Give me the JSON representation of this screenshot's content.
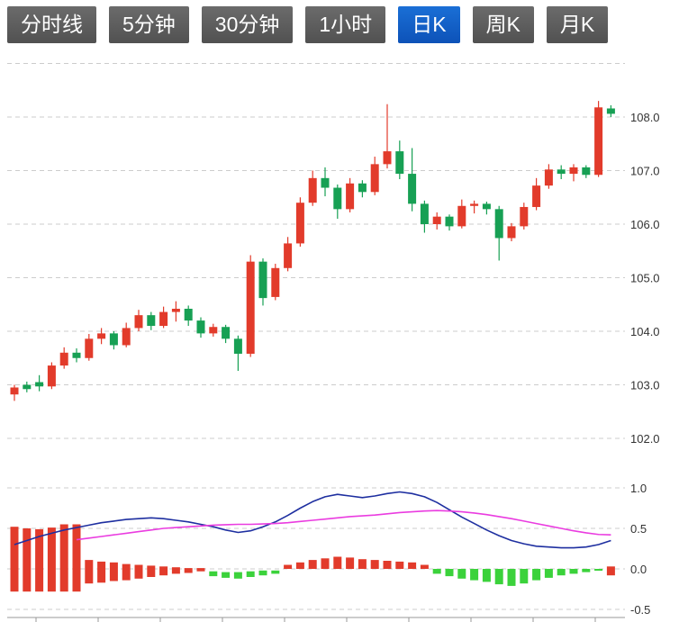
{
  "tabs": [
    {
      "id": "time-line",
      "label": "分时线",
      "active": false
    },
    {
      "id": "5min",
      "label": "5分钟",
      "active": false
    },
    {
      "id": "30min",
      "label": "30分钟",
      "active": false
    },
    {
      "id": "1hour",
      "label": "1小时",
      "active": false
    },
    {
      "id": "daily-k",
      "label": "日K",
      "active": true
    },
    {
      "id": "weekly-k",
      "label": "周K",
      "active": false
    },
    {
      "id": "monthly-k",
      "label": "月K",
      "active": false
    }
  ],
  "colors": {
    "up": "#e23b2b",
    "down": "#17a054",
    "macd_up": "#e23b2b",
    "macd_down": "#3bd23b",
    "dif": "#1e2fa0",
    "dea": "#ea3ce0",
    "grid": "#cccccc",
    "axis": "#999999",
    "label": "#333333",
    "tab_bg": "#515151",
    "tab_active": "#0d52b8"
  },
  "chart_data": {
    "type": "candlestick",
    "title": "",
    "legend_position": "none",
    "grid": "dashed-horizontal",
    "price_axis": {
      "side": "right",
      "ticks": [
        {
          "value": 109.0,
          "label": ""
        },
        {
          "value": 108.0,
          "label": "108.0"
        },
        {
          "value": 107.0,
          "label": "107.0"
        },
        {
          "value": 106.0,
          "label": "106.0"
        },
        {
          "value": 105.0,
          "label": "105.0"
        },
        {
          "value": 104.0,
          "label": "104.0"
        },
        {
          "value": 103.0,
          "label": "103.0"
        },
        {
          "value": 102.0,
          "label": "102.0"
        }
      ]
    },
    "candles": [
      [
        102.82,
        103.0,
        102.7,
        102.95
      ],
      [
        103.0,
        103.06,
        102.86,
        102.92
      ],
      [
        103.05,
        103.18,
        102.88,
        102.97
      ],
      [
        102.97,
        103.42,
        102.92,
        103.36
      ],
      [
        103.36,
        103.7,
        103.3,
        103.6
      ],
      [
        103.6,
        103.68,
        103.42,
        103.5
      ],
      [
        103.5,
        103.95,
        103.45,
        103.86
      ],
      [
        103.86,
        104.06,
        103.76,
        103.96
      ],
      [
        103.96,
        104.0,
        103.66,
        103.74
      ],
      [
        103.74,
        104.16,
        103.7,
        104.06
      ],
      [
        104.06,
        104.4,
        104.0,
        104.3
      ],
      [
        104.3,
        104.36,
        104.02,
        104.1
      ],
      [
        104.1,
        104.46,
        104.06,
        104.36
      ],
      [
        104.36,
        104.56,
        104.18,
        104.42
      ],
      [
        104.42,
        104.48,
        104.1,
        104.2
      ],
      [
        104.2,
        104.26,
        103.88,
        103.96
      ],
      [
        103.96,
        104.14,
        103.9,
        104.08
      ],
      [
        104.08,
        104.12,
        103.78,
        103.86
      ],
      [
        103.86,
        103.92,
        103.26,
        103.58
      ],
      [
        103.58,
        105.42,
        103.52,
        105.3
      ],
      [
        105.3,
        105.36,
        104.48,
        104.62
      ],
      [
        104.64,
        105.26,
        104.58,
        105.18
      ],
      [
        105.18,
        105.76,
        105.12,
        105.64
      ],
      [
        105.64,
        106.5,
        105.58,
        106.4
      ],
      [
        106.4,
        107.0,
        106.34,
        106.86
      ],
      [
        106.86,
        107.06,
        106.52,
        106.68
      ],
      [
        106.68,
        106.74,
        106.1,
        106.28
      ],
      [
        106.28,
        106.86,
        106.22,
        106.76
      ],
      [
        106.76,
        106.82,
        106.5,
        106.6
      ],
      [
        106.6,
        107.26,
        106.54,
        107.12
      ],
      [
        107.12,
        108.24,
        107.04,
        107.36
      ],
      [
        107.36,
        107.56,
        106.84,
        106.94
      ],
      [
        106.94,
        107.42,
        106.24,
        106.38
      ],
      [
        106.38,
        106.44,
        105.84,
        106.0
      ],
      [
        106.0,
        106.22,
        105.9,
        106.14
      ],
      [
        106.14,
        106.18,
        105.88,
        105.96
      ],
      [
        105.96,
        106.46,
        105.92,
        106.34
      ],
      [
        106.34,
        106.44,
        106.2,
        106.38
      ],
      [
        106.38,
        106.42,
        106.18,
        106.28
      ],
      [
        106.28,
        106.34,
        105.32,
        105.74
      ],
      [
        105.74,
        106.02,
        105.68,
        105.96
      ],
      [
        105.96,
        106.4,
        105.9,
        106.32
      ],
      [
        106.32,
        106.86,
        106.26,
        106.72
      ],
      [
        106.72,
        107.12,
        106.66,
        107.02
      ],
      [
        107.02,
        107.1,
        106.84,
        106.94
      ],
      [
        106.94,
        107.12,
        106.8,
        107.06
      ],
      [
        107.06,
        107.1,
        106.86,
        106.92
      ],
      [
        106.92,
        108.3,
        106.88,
        108.18
      ],
      [
        108.16,
        108.22,
        108.0,
        108.06
      ]
    ],
    "indicator": {
      "name": "MACD",
      "ticks": [
        {
          "value": 1.0,
          "label": "1.0"
        },
        {
          "value": 0.5,
          "label": "0.5"
        },
        {
          "value": 0.0,
          "label": "0.0"
        },
        {
          "value": -0.5,
          "label": "-0.5"
        }
      ],
      "bars": [
        [
          0.52,
          -0.28,
          "up"
        ],
        [
          0.5,
          -0.28,
          "up"
        ],
        [
          0.49,
          -0.28,
          "up"
        ],
        [
          0.51,
          -0.28,
          "up"
        ],
        [
          0.55,
          -0.28,
          "up"
        ],
        [
          0.55,
          -0.28,
          "up"
        ],
        [
          0.11,
          -0.18,
          "up"
        ],
        [
          0.09,
          -0.17,
          "up"
        ],
        [
          0.08,
          -0.15,
          "up"
        ],
        [
          0.06,
          -0.14,
          "up"
        ],
        [
          0.05,
          -0.12,
          "up"
        ],
        [
          0.04,
          -0.1,
          "up"
        ],
        [
          0.03,
          -0.08,
          "up"
        ],
        [
          0.02,
          -0.06,
          "up"
        ],
        [
          0.01,
          -0.05,
          "up"
        ],
        [
          0.01,
          -0.03,
          "up"
        ],
        [
          -0.03,
          -0.09,
          "down"
        ],
        [
          -0.04,
          -0.11,
          "down"
        ],
        [
          -0.04,
          -0.12,
          "down"
        ],
        [
          -0.03,
          -0.1,
          "down"
        ],
        [
          -0.02,
          -0.08,
          "down"
        ],
        [
          -0.02,
          -0.06,
          "down"
        ],
        [
          0.05,
          0,
          "up"
        ],
        [
          0.08,
          0,
          "up"
        ],
        [
          0.11,
          0,
          "up"
        ],
        [
          0.13,
          0,
          "up"
        ],
        [
          0.15,
          0,
          "up"
        ],
        [
          0.14,
          0,
          "up"
        ],
        [
          0.12,
          0,
          "up"
        ],
        [
          0.11,
          0,
          "up"
        ],
        [
          0.1,
          0,
          "up"
        ],
        [
          0.09,
          0,
          "up"
        ],
        [
          0.08,
          0,
          "up"
        ],
        [
          0.05,
          0,
          "up"
        ],
        [
          0,
          -0.06,
          "down"
        ],
        [
          0,
          -0.09,
          "down"
        ],
        [
          0,
          -0.12,
          "down"
        ],
        [
          0,
          -0.14,
          "down"
        ],
        [
          0,
          -0.16,
          "down"
        ],
        [
          0,
          -0.19,
          "down"
        ],
        [
          0,
          -0.21,
          "down"
        ],
        [
          0,
          -0.18,
          "down"
        ],
        [
          0,
          -0.14,
          "down"
        ],
        [
          0,
          -0.11,
          "down"
        ],
        [
          0,
          -0.08,
          "down"
        ],
        [
          0,
          -0.06,
          "down"
        ],
        [
          0,
          -0.04,
          "down"
        ],
        [
          0,
          -0.02,
          "down"
        ],
        [
          0.03,
          -0.08,
          "up"
        ]
      ],
      "dif": [
        0.3,
        0.35,
        0.4,
        0.44,
        0.48,
        0.51,
        0.54,
        0.57,
        0.59,
        0.61,
        0.62,
        0.63,
        0.62,
        0.6,
        0.58,
        0.55,
        0.52,
        0.48,
        0.45,
        0.47,
        0.52,
        0.58,
        0.66,
        0.75,
        0.83,
        0.89,
        0.92,
        0.9,
        0.88,
        0.9,
        0.93,
        0.95,
        0.93,
        0.89,
        0.82,
        0.73,
        0.64,
        0.56,
        0.48,
        0.41,
        0.35,
        0.31,
        0.28,
        0.27,
        0.26,
        0.26,
        0.27,
        0.3,
        0.35
      ],
      "dea": [
        null,
        null,
        null,
        null,
        null,
        0.36,
        0.38,
        0.4,
        0.42,
        0.44,
        0.46,
        0.48,
        0.5,
        0.51,
        0.52,
        0.53,
        0.54,
        0.545,
        0.55,
        0.55,
        0.555,
        0.56,
        0.57,
        0.585,
        0.6,
        0.615,
        0.63,
        0.645,
        0.655,
        0.665,
        0.68,
        0.695,
        0.705,
        0.715,
        0.72,
        0.715,
        0.705,
        0.69,
        0.67,
        0.645,
        0.62,
        0.59,
        0.56,
        0.53,
        0.5,
        0.47,
        0.445,
        0.425,
        0.42
      ]
    }
  }
}
